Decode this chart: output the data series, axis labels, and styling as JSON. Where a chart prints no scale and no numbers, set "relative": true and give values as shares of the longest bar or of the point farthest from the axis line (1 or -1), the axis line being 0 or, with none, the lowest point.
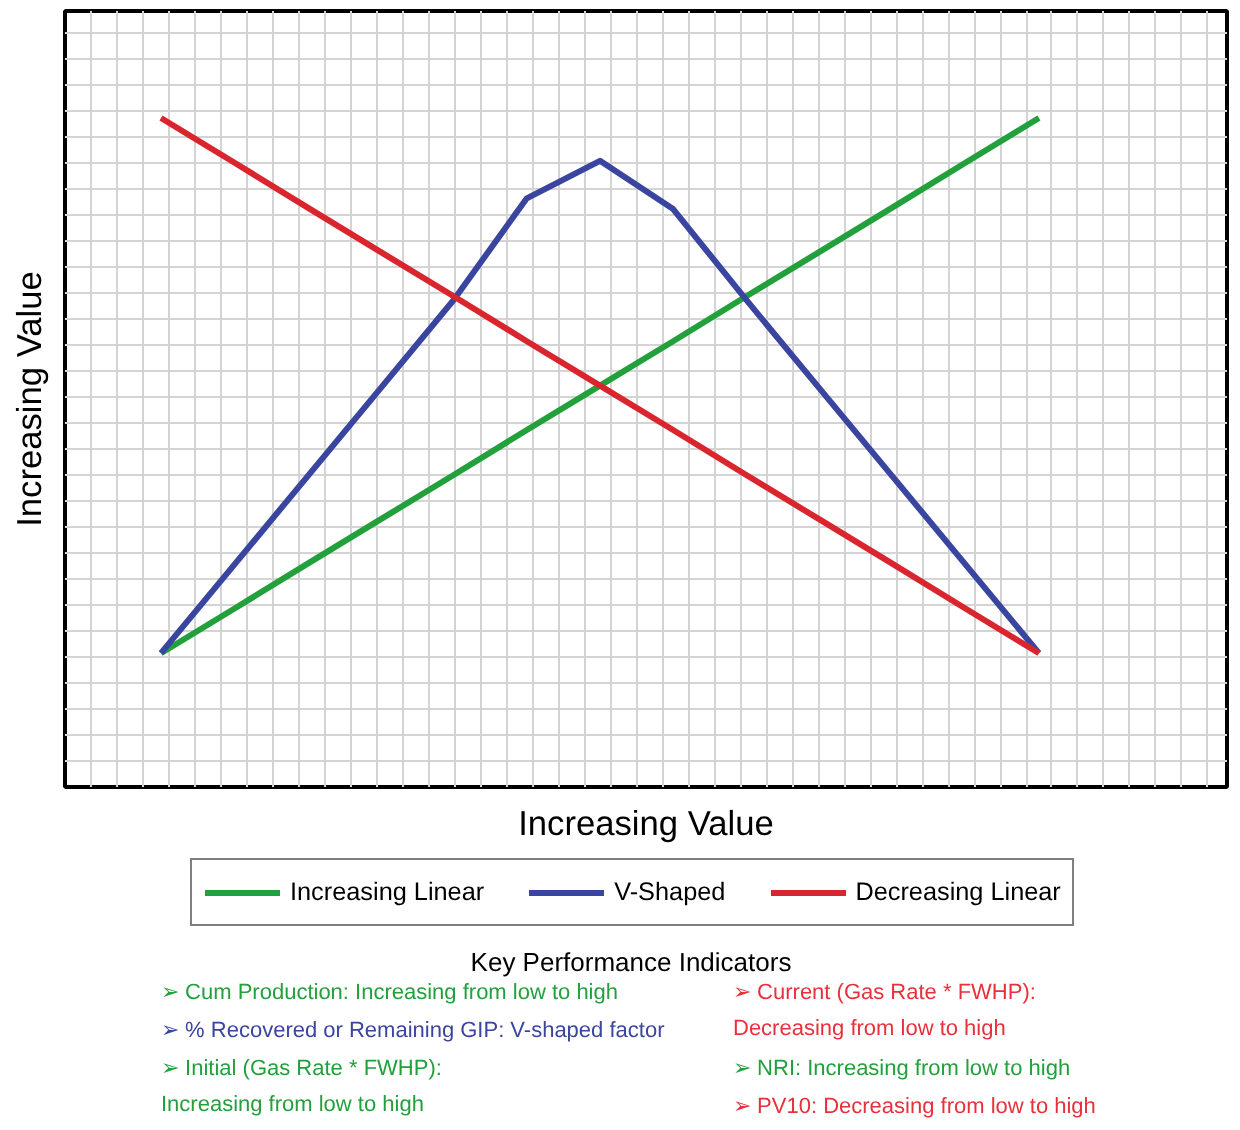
{
  "chart_data": {
    "type": "line",
    "xlabel": "Increasing Value",
    "ylabel": "Increasing Value",
    "relative": true,
    "grid": true,
    "legend": "bottom",
    "categories": [
      null,
      null,
      null,
      null,
      null,
      null,
      null,
      null,
      null,
      null,
      null,
      null,
      null
    ],
    "series": [
      {
        "name": "Increasing Linear",
        "color": "#22a03c",
        "values": [
          0,
          0.083,
          0.167,
          0.25,
          0.333,
          0.417,
          0.5,
          0.583,
          0.667,
          0.75,
          0.833,
          0.917,
          1
        ]
      },
      {
        "name": "V-Shaped",
        "color": "#3a45a0",
        "values": [
          0,
          0.165,
          0.33,
          0.495,
          0.66,
          0.85,
          0.92,
          0.83,
          0.66,
          0.495,
          0.33,
          0.165,
          0
        ]
      },
      {
        "name": "Decreasing Linear",
        "color": "#d9262e",
        "values": [
          1,
          0.917,
          0.833,
          0.75,
          0.667,
          0.583,
          0.5,
          0.417,
          0.333,
          0.25,
          0.167,
          0.083,
          0
        ]
      }
    ],
    "annotations": [
      "Key Performance Indicators",
      "➢ Cum Production: Increasing from low to high",
      "➢ % Recovered or Remaining GIP: V-shaped factor",
      "➢ Initial (Gas Rate * FWHP):\nIncreasing from low to high",
      "➢ Current (Gas Rate * FWHP):\nDecreasing from low to high",
      "➢ NRI: Increasing from low to high",
      "➢ PV10: Decreasing from low to high"
    ]
  }
}
